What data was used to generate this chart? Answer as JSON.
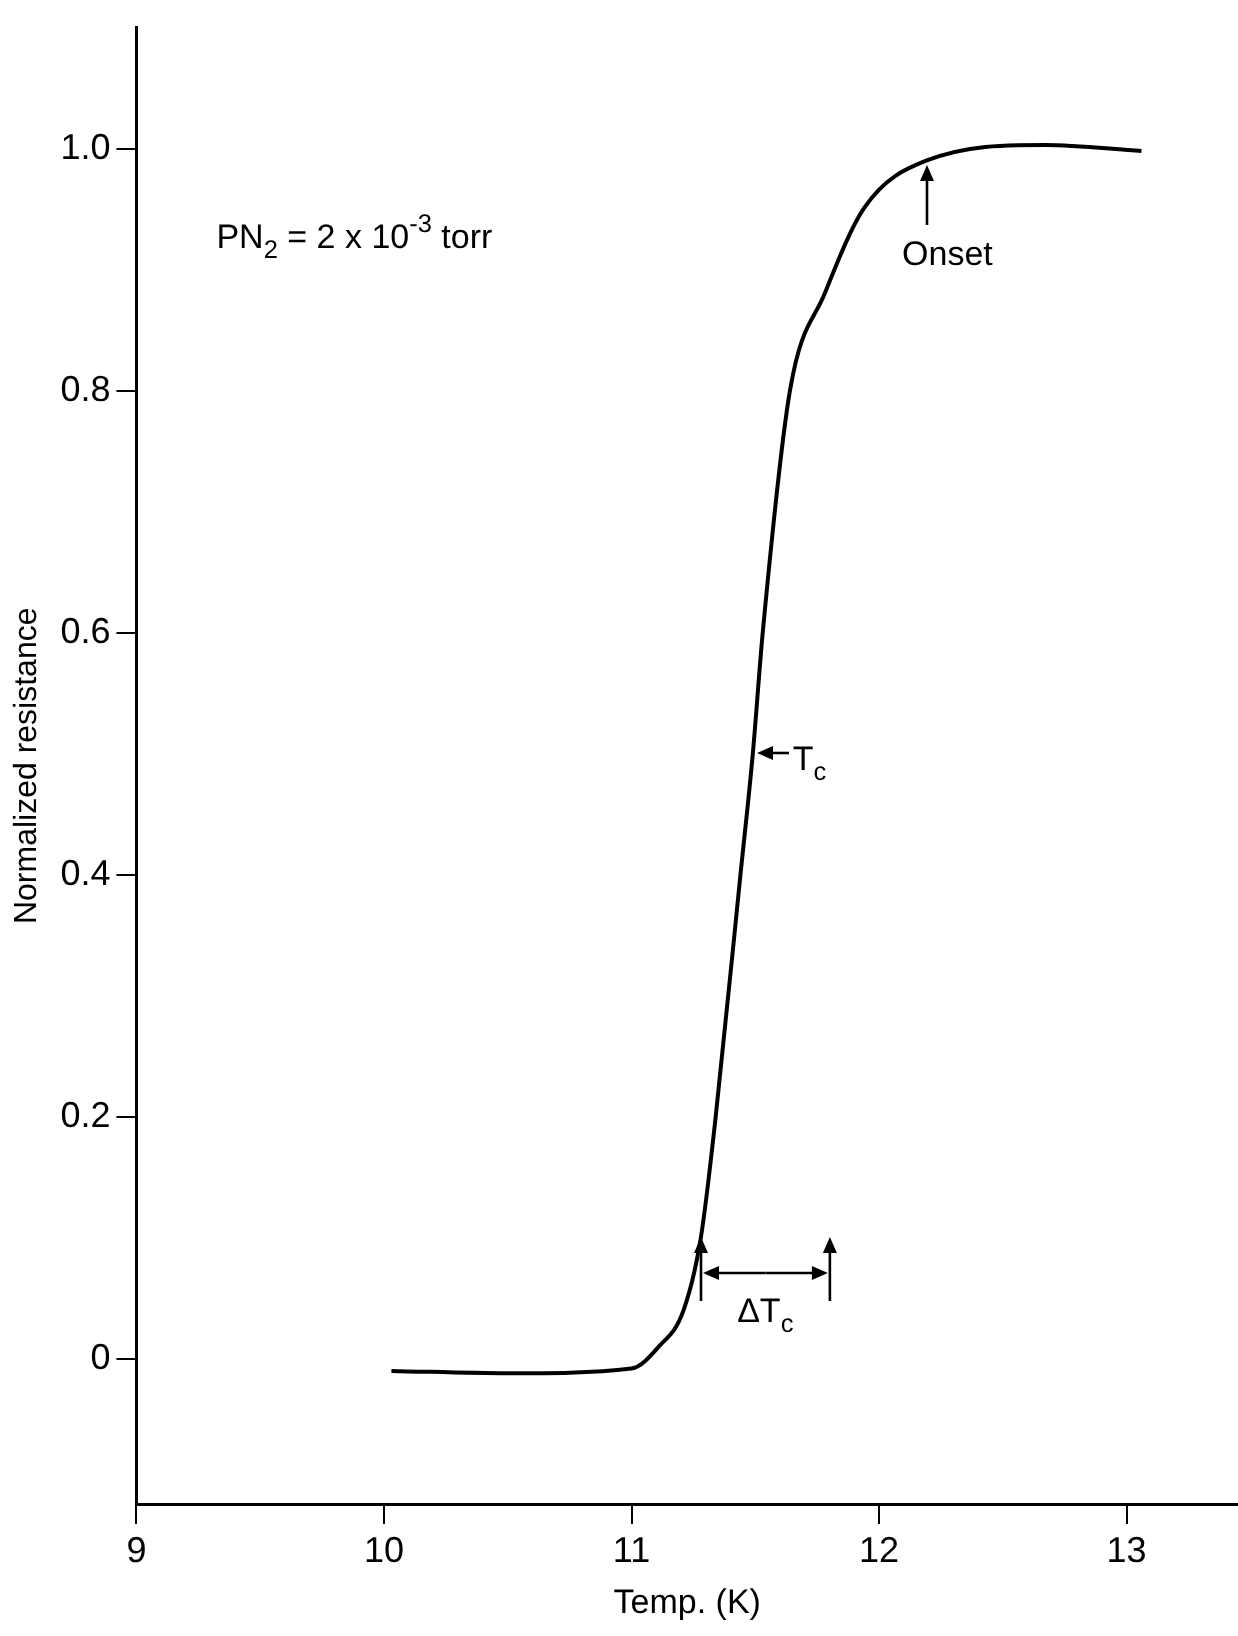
{
  "chart_data": {
    "type": "line",
    "xlabel": "Temp. (K)",
    "ylabel": "Normalized resistance",
    "xlim": [
      9,
      13.45
    ],
    "xticks": [
      9,
      10,
      11,
      12,
      13
    ],
    "ylim": [
      -0.12,
      1.1
    ],
    "yticks": [
      0,
      0.2,
      0.4,
      0.6,
      0.8,
      {
        "value": 1,
        "label": "1.0"
      }
    ],
    "grid": false,
    "marker": "none",
    "line_style": "solid",
    "series": [
      {
        "color": "#000000",
        "x": [
          10.03,
          10.5,
          11.0,
          11.11,
          11.21,
          11.28,
          11.34,
          11.44,
          11.49,
          11.53,
          11.64,
          11.78,
          11.94,
          12.19,
          12.67,
          13.06
        ],
        "values": [
          -0.01,
          -0.012,
          -0.008,
          0.01,
          0.04,
          0.1,
          0.2,
          0.4,
          0.5,
          0.6,
          0.8,
          0.88,
          0.951,
          0.99,
          1.003,
          0.998
        ]
      }
    ],
    "annotations": [
      "PN$_{2}$ = 2 x 10$^{-3}$ torr",
      {
        "text": "Onset",
        "x": 12.19,
        "y": 0.99
      },
      {
        "text": "T$_{c}$",
        "x": 11.49,
        "y": 0.5
      },
      {
        "text": "ΔT$_{c}$",
        "x": 11.28,
        "y": 0.1
      }
    ]
  }
}
